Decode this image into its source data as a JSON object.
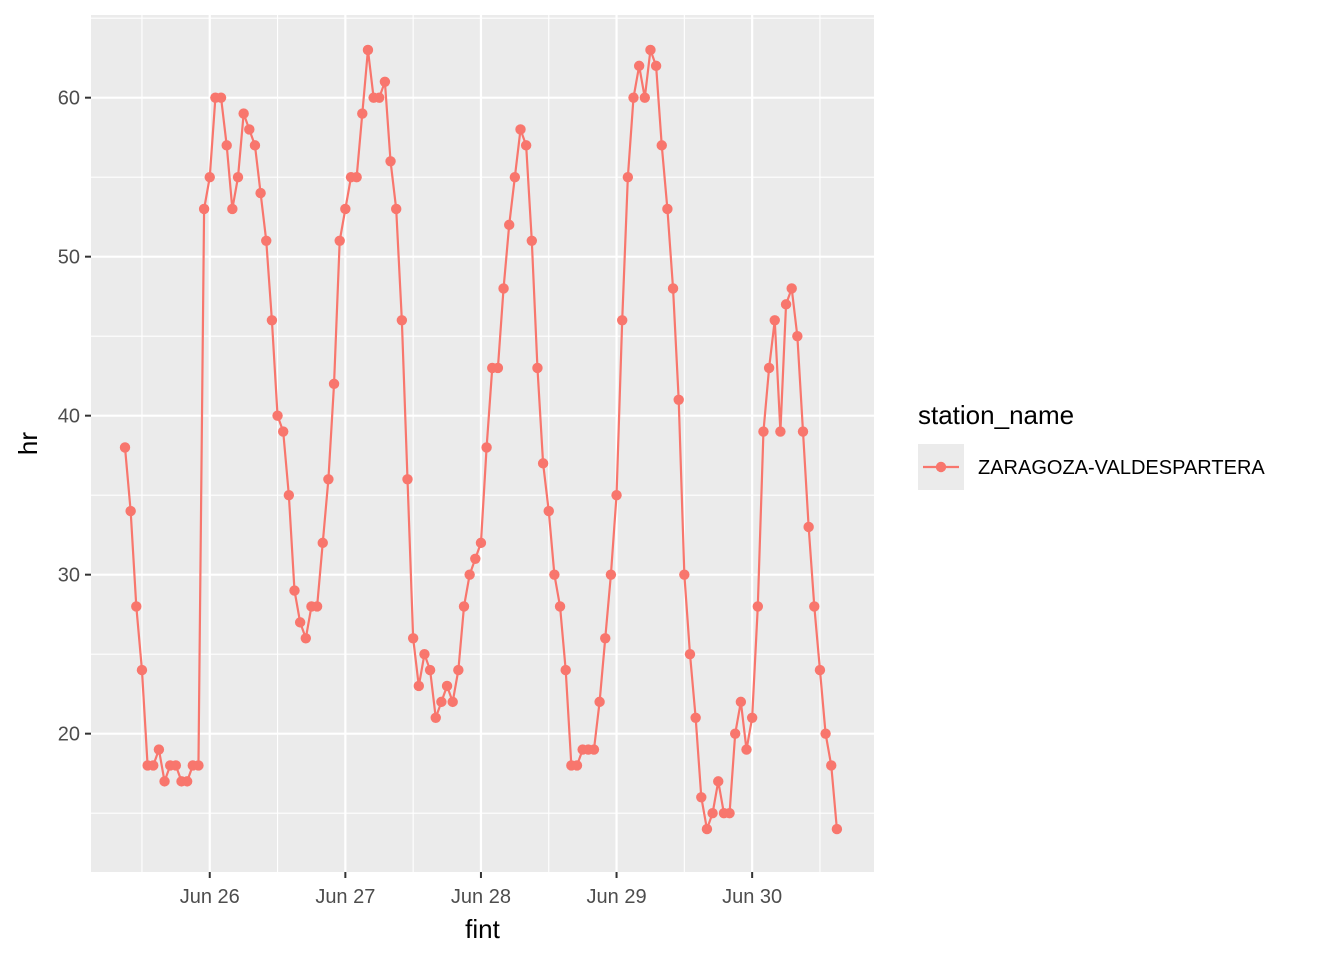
{
  "chart_data": {
    "type": "line",
    "title": "",
    "xlabel": "fint",
    "ylabel": "hr",
    "x_start": "2025-06-25T09:00",
    "x_step_hours": 1,
    "x_ticks": [
      {
        "value": "2025-06-26",
        "label": "Jun 26"
      },
      {
        "value": "2025-06-27",
        "label": "Jun 27"
      },
      {
        "value": "2025-06-28",
        "label": "Jun 28"
      },
      {
        "value": "2025-06-29",
        "label": "Jun 29"
      },
      {
        "value": "2025-06-30",
        "label": "Jun 30"
      }
    ],
    "y_ticks": [
      20,
      30,
      40,
      50,
      60
    ],
    "ylim": [
      11.3,
      65.2
    ],
    "grid": true,
    "legend": {
      "title": "station_name",
      "placement": "right"
    },
    "series": [
      {
        "name": "ZARAGOZA-VALDESPARTERA",
        "color": "#F8766D",
        "values": [
          38,
          34,
          28,
          24,
          18,
          18,
          19,
          17,
          18,
          18,
          17,
          17,
          18,
          18,
          53,
          55,
          60,
          60,
          57,
          53,
          55,
          59,
          58,
          57,
          54,
          51,
          46,
          40,
          39,
          35,
          29,
          27,
          26,
          28,
          28,
          32,
          36,
          42,
          51,
          53,
          55,
          55,
          59,
          63,
          60,
          60,
          61,
          56,
          53,
          46,
          36,
          26,
          23,
          25,
          24,
          21,
          22,
          23,
          22,
          24,
          28,
          30,
          31,
          32,
          38,
          43,
          43,
          48,
          52,
          55,
          58,
          57,
          51,
          43,
          37,
          34,
          30,
          28,
          24,
          18,
          18,
          19,
          19,
          19,
          22,
          26,
          30,
          35,
          46,
          55,
          60,
          62,
          60,
          63,
          62,
          57,
          53,
          48,
          41,
          30,
          25,
          21,
          16,
          14,
          15,
          17,
          15,
          15,
          20,
          22,
          19,
          21,
          28,
          39,
          43,
          46,
          39,
          47,
          48,
          45,
          39,
          33,
          28,
          24,
          20,
          18,
          14
        ]
      }
    ]
  }
}
